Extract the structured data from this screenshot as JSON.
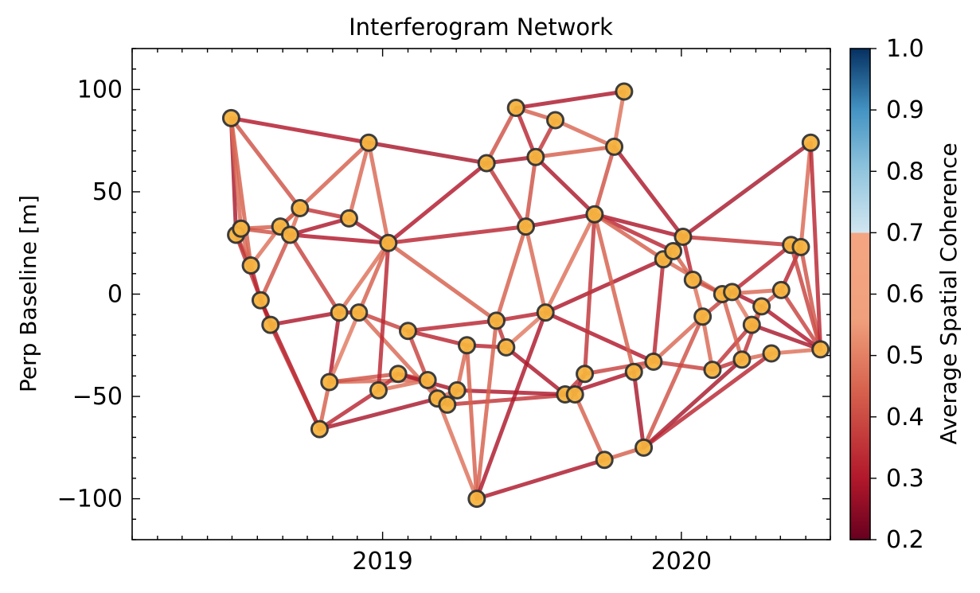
{
  "chart_data": {
    "type": "scatter",
    "title": "Interferogram Network",
    "xlabel": "",
    "ylabel": "Perp Baseline [m]",
    "x_ticks": [
      "2019",
      "2020"
    ],
    "y_ticks": [
      -100,
      -50,
      0,
      50,
      100
    ],
    "xlim": [
      "2018-03-01",
      "2020-07-01"
    ],
    "ylim": [
      -120,
      120
    ],
    "colorbar": {
      "label": "Average Spatial Coherence",
      "ticks": [
        "0.2",
        "0.3",
        "0.4",
        "0.5",
        "0.6",
        "0.7",
        "0.8",
        "0.9",
        "1.0"
      ],
      "range": [
        0.2,
        1.0
      ],
      "colormap": "RdBu",
      "split_at": 0.7
    },
    "acquisitions": [
      {
        "date": "2018-06-30",
        "bperp": 86
      },
      {
        "date": "2018-07-06",
        "bperp": 29
      },
      {
        "date": "2018-07-12",
        "bperp": 32
      },
      {
        "date": "2018-07-24",
        "bperp": 14
      },
      {
        "date": "2018-08-05",
        "bperp": -3
      },
      {
        "date": "2018-08-17",
        "bperp": -15
      },
      {
        "date": "2018-08-29",
        "bperp": 33
      },
      {
        "date": "2018-09-10",
        "bperp": 29
      },
      {
        "date": "2018-09-22",
        "bperp": 42
      },
      {
        "date": "2018-10-16",
        "bperp": -66
      },
      {
        "date": "2018-10-28",
        "bperp": -43
      },
      {
        "date": "2018-11-09",
        "bperp": -9
      },
      {
        "date": "2018-11-21",
        "bperp": 37
      },
      {
        "date": "2018-12-03",
        "bperp": -9
      },
      {
        "date": "2018-12-15",
        "bperp": 74
      },
      {
        "date": "2018-12-27",
        "bperp": -47
      },
      {
        "date": "2019-01-08",
        "bperp": 25
      },
      {
        "date": "2019-01-20",
        "bperp": -39
      },
      {
        "date": "2019-02-01",
        "bperp": -18
      },
      {
        "date": "2019-02-25",
        "bperp": -42
      },
      {
        "date": "2019-03-09",
        "bperp": -51
      },
      {
        "date": "2019-03-21",
        "bperp": -54
      },
      {
        "date": "2019-04-02",
        "bperp": -47
      },
      {
        "date": "2019-04-14",
        "bperp": -25
      },
      {
        "date": "2019-04-26",
        "bperp": -100
      },
      {
        "date": "2019-05-08",
        "bperp": 64
      },
      {
        "date": "2019-05-20",
        "bperp": -13
      },
      {
        "date": "2019-06-01",
        "bperp": -26
      },
      {
        "date": "2019-06-13",
        "bperp": 91
      },
      {
        "date": "2019-06-25",
        "bperp": 33
      },
      {
        "date": "2019-07-07",
        "bperp": 67
      },
      {
        "date": "2019-07-19",
        "bperp": -9
      },
      {
        "date": "2019-07-31",
        "bperp": 85
      },
      {
        "date": "2019-08-12",
        "bperp": -49
      },
      {
        "date": "2019-08-24",
        "bperp": -49
      },
      {
        "date": "2019-09-05",
        "bperp": -39
      },
      {
        "date": "2019-09-17",
        "bperp": 39
      },
      {
        "date": "2019-09-29",
        "bperp": -81
      },
      {
        "date": "2019-10-11",
        "bperp": 72
      },
      {
        "date": "2019-10-23",
        "bperp": 99
      },
      {
        "date": "2019-11-04",
        "bperp": -38
      },
      {
        "date": "2019-11-16",
        "bperp": -75
      },
      {
        "date": "2019-11-28",
        "bperp": -33
      },
      {
        "date": "2019-12-10",
        "bperp": 17
      },
      {
        "date": "2019-12-22",
        "bperp": 21
      },
      {
        "date": "2020-01-03",
        "bperp": 28
      },
      {
        "date": "2020-01-15",
        "bperp": 7
      },
      {
        "date": "2020-01-27",
        "bperp": -11
      },
      {
        "date": "2020-02-08",
        "bperp": -37
      },
      {
        "date": "2020-02-20",
        "bperp": 0
      },
      {
        "date": "2020-03-03",
        "bperp": 1
      },
      {
        "date": "2020-03-15",
        "bperp": -32
      },
      {
        "date": "2020-03-27",
        "bperp": -15
      },
      {
        "date": "2020-04-08",
        "bperp": -6
      },
      {
        "date": "2020-04-20",
        "bperp": -29
      },
      {
        "date": "2020-05-02",
        "bperp": 2
      },
      {
        "date": "2020-05-14",
        "bperp": 24
      },
      {
        "date": "2020-05-26",
        "bperp": 23
      },
      {
        "date": "2020-06-07",
        "bperp": 74
      },
      {
        "date": "2020-06-19",
        "bperp": -27
      }
    ],
    "pairs": [
      [
        0,
        1,
        0.36
      ],
      [
        0,
        3,
        0.5
      ],
      [
        0,
        8,
        0.48
      ],
      [
        0,
        14,
        0.4
      ],
      [
        0,
        2,
        0.52
      ],
      [
        1,
        2,
        0.55
      ],
      [
        1,
        3,
        0.46
      ],
      [
        1,
        5,
        0.44
      ],
      [
        2,
        6,
        0.5
      ],
      [
        2,
        3,
        0.52
      ],
      [
        2,
        7,
        0.48
      ],
      [
        3,
        4,
        0.42
      ],
      [
        3,
        6,
        0.54
      ],
      [
        4,
        5,
        0.5
      ],
      [
        4,
        7,
        0.48
      ],
      [
        4,
        9,
        0.4
      ],
      [
        5,
        9,
        0.44
      ],
      [
        5,
        11,
        0.38
      ],
      [
        6,
        8,
        0.52
      ],
      [
        6,
        7,
        0.46
      ],
      [
        6,
        14,
        0.5
      ],
      [
        7,
        16,
        0.4
      ],
      [
        7,
        11,
        0.46
      ],
      [
        7,
        8,
        0.54
      ],
      [
        7,
        12,
        0.38
      ],
      [
        8,
        12,
        0.44
      ],
      [
        9,
        10,
        0.5
      ],
      [
        9,
        15,
        0.42
      ],
      [
        9,
        20,
        0.36
      ],
      [
        10,
        11,
        0.38
      ],
      [
        10,
        13,
        0.56
      ],
      [
        10,
        19,
        0.52
      ],
      [
        10,
        17,
        0.48
      ],
      [
        11,
        16,
        0.54
      ],
      [
        11,
        13,
        0.38
      ],
      [
        12,
        16,
        0.36
      ],
      [
        12,
        14,
        0.52
      ],
      [
        13,
        16,
        0.5
      ],
      [
        13,
        18,
        0.46
      ],
      [
        13,
        20,
        0.52
      ],
      [
        14,
        16,
        0.52
      ],
      [
        14,
        25,
        0.36
      ],
      [
        15,
        17,
        0.44
      ],
      [
        15,
        19,
        0.54
      ],
      [
        15,
        16,
        0.42
      ],
      [
        16,
        25,
        0.4
      ],
      [
        16,
        29,
        0.42
      ],
      [
        16,
        26,
        0.5
      ],
      [
        17,
        19,
        0.5
      ],
      [
        17,
        22,
        0.38
      ],
      [
        18,
        19,
        0.46
      ],
      [
        18,
        23,
        0.42
      ],
      [
        18,
        26,
        0.42
      ],
      [
        19,
        20,
        0.52
      ],
      [
        19,
        21,
        0.48
      ],
      [
        20,
        22,
        0.52
      ],
      [
        20,
        21,
        0.4
      ],
      [
        20,
        24,
        0.54
      ],
      [
        21,
        22,
        0.36
      ],
      [
        21,
        34,
        0.44
      ],
      [
        22,
        23,
        0.52
      ],
      [
        22,
        33,
        0.38
      ],
      [
        23,
        24,
        0.5
      ],
      [
        23,
        27,
        0.42
      ],
      [
        24,
        26,
        0.5
      ],
      [
        24,
        31,
        0.38
      ],
      [
        24,
        37,
        0.38
      ],
      [
        25,
        28,
        0.48
      ],
      [
        25,
        29,
        0.44
      ],
      [
        25,
        30,
        0.36
      ],
      [
        26,
        31,
        0.42
      ],
      [
        26,
        29,
        0.5
      ],
      [
        26,
        27,
        0.44
      ],
      [
        27,
        33,
        0.38
      ],
      [
        27,
        31,
        0.56
      ],
      [
        28,
        30,
        0.42
      ],
      [
        28,
        32,
        0.5
      ],
      [
        28,
        39,
        0.38
      ],
      [
        29,
        36,
        0.38
      ],
      [
        29,
        30,
        0.48
      ],
      [
        29,
        31,
        0.52
      ],
      [
        30,
        38,
        0.5
      ],
      [
        30,
        36,
        0.38
      ],
      [
        30,
        32,
        0.44
      ],
      [
        31,
        36,
        0.54
      ],
      [
        31,
        43,
        0.38
      ],
      [
        31,
        42,
        0.4
      ],
      [
        32,
        38,
        0.52
      ],
      [
        33,
        34,
        0.5
      ],
      [
        33,
        35,
        0.44
      ],
      [
        33,
        40,
        0.38
      ],
      [
        34,
        37,
        0.5
      ],
      [
        34,
        35,
        0.36
      ],
      [
        35,
        42,
        0.46
      ],
      [
        35,
        36,
        0.44
      ],
      [
        36,
        38,
        0.48
      ],
      [
        36,
        45,
        0.38
      ],
      [
        36,
        44,
        0.42
      ],
      [
        36,
        40,
        0.5
      ],
      [
        36,
        43,
        0.5
      ],
      [
        37,
        41,
        0.5
      ],
      [
        38,
        39,
        0.54
      ],
      [
        38,
        45,
        0.38
      ],
      [
        40,
        42,
        0.52
      ],
      [
        40,
        41,
        0.36
      ],
      [
        41,
        47,
        0.48
      ],
      [
        41,
        51,
        0.36
      ],
      [
        41,
        54,
        0.42
      ],
      [
        42,
        47,
        0.52
      ],
      [
        42,
        48,
        0.46
      ],
      [
        42,
        43,
        0.42
      ],
      [
        43,
        44,
        0.48
      ],
      [
        43,
        45,
        0.36
      ],
      [
        43,
        49,
        0.52
      ],
      [
        44,
        46,
        0.5
      ],
      [
        44,
        45,
        0.54
      ],
      [
        45,
        56,
        0.44
      ],
      [
        45,
        58,
        0.36
      ],
      [
        45,
        46,
        0.42
      ],
      [
        46,
        49,
        0.48
      ],
      [
        46,
        47,
        0.54
      ],
      [
        47,
        48,
        0.52
      ],
      [
        47,
        50,
        0.46
      ],
      [
        48,
        51,
        0.44
      ],
      [
        48,
        52,
        0.44
      ],
      [
        49,
        50,
        0.54
      ],
      [
        49,
        55,
        0.52
      ],
      [
        49,
        51,
        0.5
      ],
      [
        50,
        56,
        0.42
      ],
      [
        50,
        52,
        0.56
      ],
      [
        50,
        53,
        0.38
      ],
      [
        51,
        54,
        0.52
      ],
      [
        51,
        53,
        0.44
      ],
      [
        52,
        53,
        0.52
      ],
      [
        52,
        59,
        0.36
      ],
      [
        53,
        55,
        0.48
      ],
      [
        53,
        59,
        0.4
      ],
      [
        54,
        59,
        0.54
      ],
      [
        55,
        57,
        0.42
      ],
      [
        55,
        59,
        0.46
      ],
      [
        56,
        57,
        0.52
      ],
      [
        56,
        59,
        0.46
      ],
      [
        57,
        58,
        0.52
      ],
      [
        57,
        59,
        0.48
      ],
      [
        58,
        59,
        0.42
      ]
    ]
  }
}
